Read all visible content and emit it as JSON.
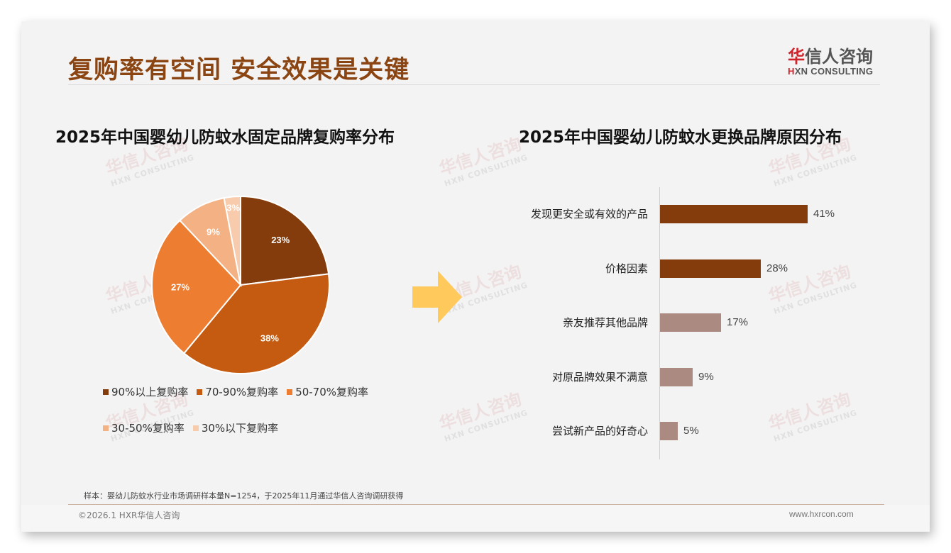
{
  "header": {
    "title": "复购率有空间 安全效果是关键",
    "logo_cn_hua": "华",
    "logo_cn_rest": "信人咨询",
    "logo_en_h": "H",
    "logo_en_rest": "XN CONSULTING"
  },
  "watermark": {
    "cn": "华信人咨询",
    "en": "HXN CONSULTING"
  },
  "colors": {
    "title": "#8b4513",
    "bar_dark": "#843c0c",
    "bar_light": "#ab8b81",
    "arrow": "#ffc95c"
  },
  "chart_data": [
    {
      "type": "pie",
      "title": "2025年中国婴幼儿防蚊水固定品牌复购率分布",
      "categories": [
        "90%以上复购率",
        "70-90%复购率",
        "50-70%复购率",
        "30-50%复购率",
        "30%以下复购率"
      ],
      "values": [
        23,
        38,
        27,
        9,
        3
      ],
      "labels": [
        "23%",
        "38%",
        "27%",
        "9%",
        "3%"
      ],
      "colors": [
        "#843c0c",
        "#c55a11",
        "#ed7d31",
        "#f4b183",
        "#f8cbad"
      ],
      "legend_position": "bottom"
    },
    {
      "type": "bar",
      "orientation": "horizontal",
      "title": "2025年中国婴幼儿防蚊水更换品牌原因分布",
      "categories": [
        "发现更安全或有效的产品",
        "价格因素",
        "亲友推荐其他品牌",
        "对原品牌效果不满意",
        "尝试新产品的好奇心"
      ],
      "values": [
        41,
        28,
        17,
        9,
        5
      ],
      "labels": [
        "41%",
        "28%",
        "17%",
        "9%",
        "5%"
      ],
      "colors": [
        "#843c0c",
        "#843c0c",
        "#ab8b81",
        "#ab8b81",
        "#ab8b81"
      ],
      "xlabel": "",
      "ylabel": "",
      "grid": false
    }
  ],
  "footer": {
    "note": "样本：婴幼儿防蚊水行业市场调研样本量N=1254，于2025年11月通过华信人咨询调研获得",
    "copyright": "©2026.1 HXR华信人咨询",
    "site": "www.hxrcon.com"
  }
}
